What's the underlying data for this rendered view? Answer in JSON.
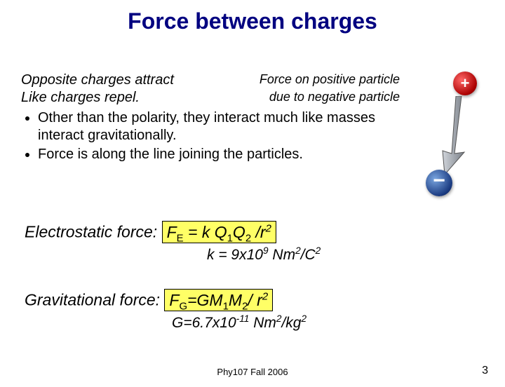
{
  "title": "Force between charges",
  "intro": {
    "line1_left": "Opposite charges attract",
    "line1_right": "Force on positive particle",
    "line2_left": "Like charges repel.",
    "line2_right": "due to negative particle"
  },
  "bullets": [
    "Other than the polarity, they interact much like masses interact gravitationally.",
    "Force is along the line joining the particles."
  ],
  "charges": {
    "plus_symbol": "+",
    "plus_color": "#cc0000",
    "minus_symbol": "−",
    "minus_color": "#1a3a80"
  },
  "arrow": {
    "color_fill": "#9aa0a8",
    "color_stroke": "#555555"
  },
  "electrostatic": {
    "label": "Electrostatic force: ",
    "formula_html": "F<sub>E</sub> = k Q<sub>1</sub>Q<sub>2</sub> /r<sup>2</sup>",
    "constant_html": "k = 9x10<sup>9</sup> Nm<sup>2</sup>/C<sup>2</sup>",
    "highlight": "#ffff66"
  },
  "gravitational": {
    "label": "Gravitational force: ",
    "formula_html": "F<sub>G</sub>=GM<sub>1</sub>M<sub>2</sub>/ r<sup>2</sup>",
    "constant_html": "G=6.7x10<sup>-11</sup> Nm<sup>2</sup>/kg<sup>2</sup>",
    "highlight": "#ffff66"
  },
  "footer": "Phy107 Fall 2006",
  "page_number": "3",
  "style": {
    "title_color": "#000080",
    "title_fontsize": 32,
    "body_fontsize": 20,
    "font_family": "Comic Sans MS",
    "background": "#ffffff"
  }
}
